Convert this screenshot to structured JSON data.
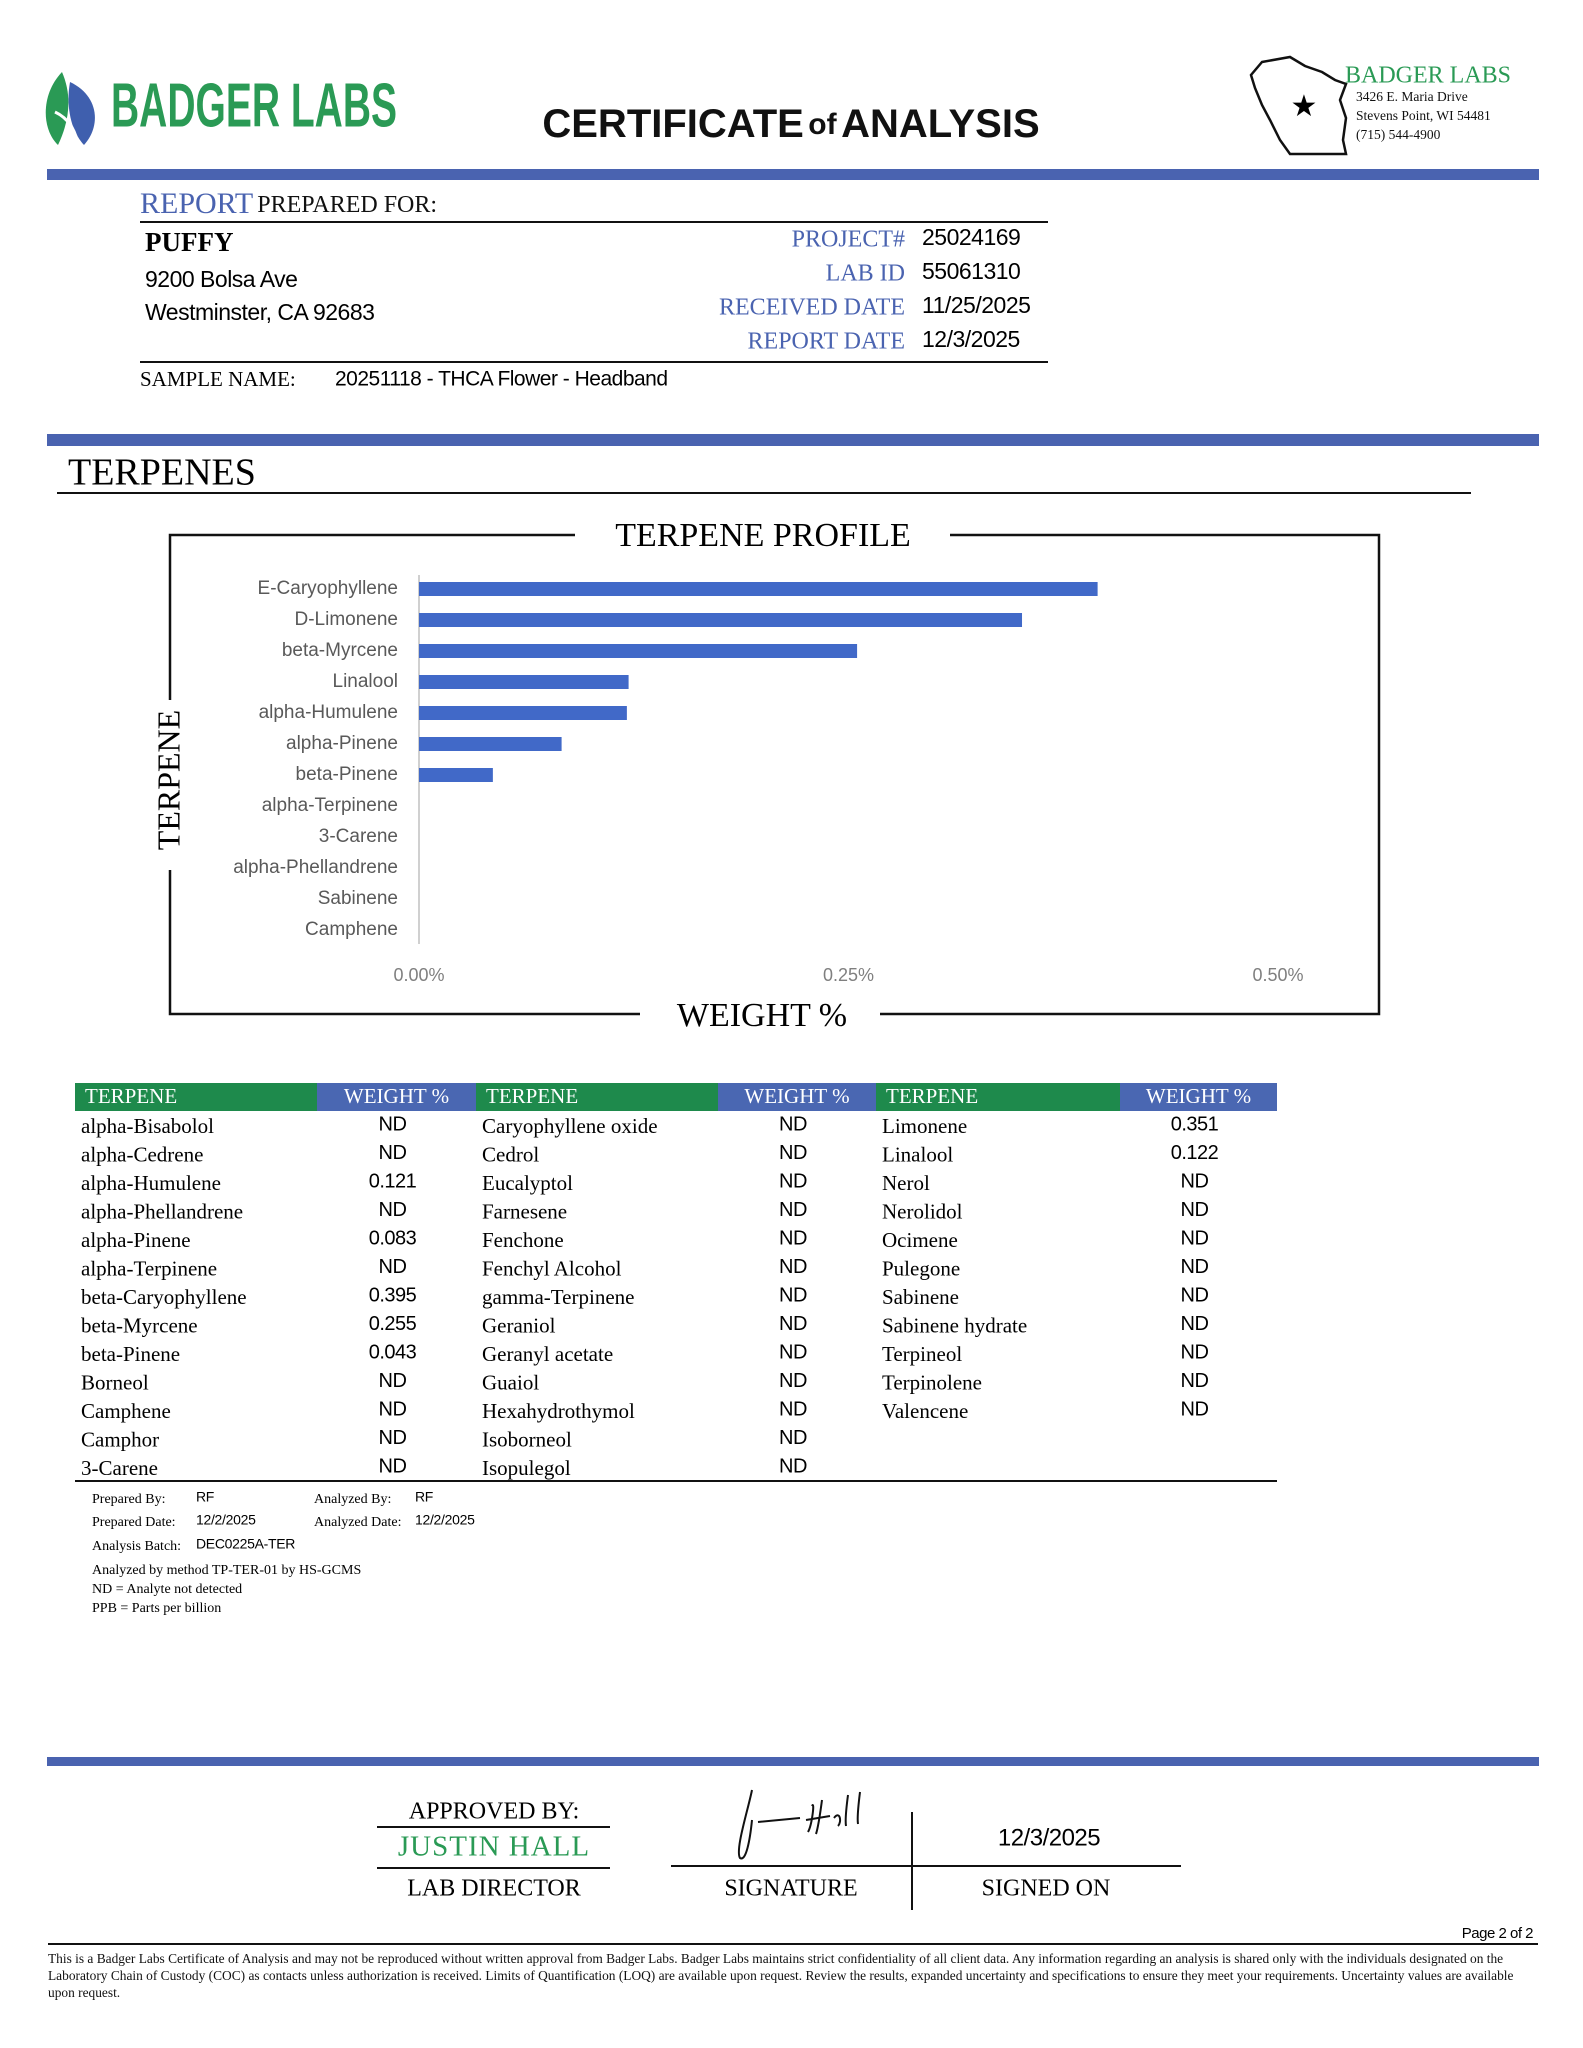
{
  "header": {
    "logo": "BADGER LABS",
    "title": [
      "CERTIFICATE",
      "of",
      "ANALYSIS"
    ],
    "lab_name": "BADGER LABS",
    "address": [
      "3426 E. Maria Drive",
      "Stevens Point, WI 54481",
      "(715) 544-4900"
    ]
  },
  "report": {
    "heading": [
      "REPORT",
      "PREPARED FOR:"
    ],
    "client": "PUFFY",
    "client_address": [
      "9200 Bolsa Ave",
      "Westminster, CA 92683"
    ],
    "fields": [
      {
        "label": "PROJECT#",
        "value": "25024169"
      },
      {
        "label": "LAB ID",
        "value": "55061310"
      },
      {
        "label": "RECEIVED DATE",
        "value": "11/25/2025"
      },
      {
        "label": "REPORT DATE",
        "value": "12/3/2025"
      }
    ],
    "sample_label": "SAMPLE NAME:",
    "sample_name": "20251118 - THCA Flower - Headband"
  },
  "section_title": "TERPENES",
  "chart_data": {
    "type": "bar",
    "horizontal": true,
    "title": "TERPENE PROFILE",
    "x_label": "WEIGHT %",
    "y_label": "TERPENE",
    "color": "#4169c8",
    "categories": [
      "E-Caryophyllene",
      "D-Limonene",
      "beta-Myrcene",
      "Linalool",
      "alpha-Humulene",
      "alpha-Pinene",
      "beta-Pinene",
      "alpha-Terpinene",
      "3-Carene",
      "alpha-Phellandrene",
      "Sabinene",
      "Camphene"
    ],
    "values": [
      0.395,
      0.351,
      0.255,
      0.122,
      0.121,
      0.083,
      0.043,
      0,
      0,
      0,
      0,
      0
    ],
    "xlim": [
      0,
      0.5
    ],
    "xticks": [
      {
        "value": 0,
        "label": "0.00%"
      },
      {
        "value": 0.25,
        "label": "0.25%"
      },
      {
        "value": 0.5,
        "label": "0.50%"
      }
    ]
  },
  "table": {
    "groups": [
      {
        "headers": [
          "TERPENE",
          "WEIGHT %"
        ],
        "rows": [
          [
            "alpha-Bisabolol",
            "ND"
          ],
          [
            "alpha-Cedrene",
            "ND"
          ],
          [
            "alpha-Humulene",
            0.121
          ],
          [
            "alpha-Phellandrene",
            "ND"
          ],
          [
            "alpha-Pinene",
            0.083
          ],
          [
            "alpha-Terpinene",
            "ND"
          ],
          [
            "beta-Caryophyllene",
            0.395
          ],
          [
            "beta-Myrcene",
            0.255
          ],
          [
            "beta-Pinene",
            0.043
          ],
          [
            "Borneol",
            "ND"
          ],
          [
            "Camphene",
            "ND"
          ],
          [
            "Camphor",
            "ND"
          ],
          [
            "3-Carene",
            "ND"
          ]
        ]
      },
      {
        "headers": [
          "TERPENE",
          "WEIGHT %"
        ],
        "rows": [
          [
            "Caryophyllene oxide",
            "ND"
          ],
          [
            "Cedrol",
            "ND"
          ],
          [
            "Eucalyptol",
            "ND"
          ],
          [
            "Farnesene",
            "ND"
          ],
          [
            "Fenchone",
            "ND"
          ],
          [
            "Fenchyl Alcohol",
            "ND"
          ],
          [
            "gamma-Terpinene",
            "ND"
          ],
          [
            "Geraniol",
            "ND"
          ],
          [
            "Geranyl acetate",
            "ND"
          ],
          [
            "Guaiol",
            "ND"
          ],
          [
            "Hexahydrothymol",
            "ND"
          ],
          [
            "Isoborneol",
            "ND"
          ],
          [
            "Isopulegol",
            "ND"
          ]
        ]
      },
      {
        "headers": [
          "TERPENE",
          "WEIGHT %"
        ],
        "rows": [
          [
            "Limonene",
            0.351
          ],
          [
            "Linalool",
            0.122
          ],
          [
            "Nerol",
            "ND"
          ],
          [
            "Nerolidol",
            "ND"
          ],
          [
            "Ocimene",
            "ND"
          ],
          [
            "Pulegone",
            "ND"
          ],
          [
            "Sabinene",
            "ND"
          ],
          [
            "Sabinene hydrate",
            "ND"
          ],
          [
            "Terpineol",
            "ND"
          ],
          [
            "Terpinolene",
            "ND"
          ],
          [
            "Valencene",
            "ND"
          ]
        ]
      }
    ]
  },
  "notes": {
    "prepared_by": {
      "label": "Prepared By:",
      "value": "RF"
    },
    "prepared_date": {
      "label": "Prepared Date:",
      "value": "12/2/2025"
    },
    "analyzed_by": {
      "label": "Analyzed By:",
      "value": "RF"
    },
    "analyzed_date": {
      "label": "Analyzed Date:",
      "value": "12/2/2025"
    },
    "batch": {
      "label": "Analysis Batch:",
      "value": "DEC0225A-TER"
    },
    "lines": [
      "Analyzed by method TP-TER-01 by HS-GCMS",
      "ND = Analyte not detected",
      "PPB = Parts per billion"
    ]
  },
  "approval": {
    "approved_by": "APPROVED BY:",
    "name": "JUSTIN HALL",
    "role": "LAB DIRECTOR",
    "signature_label": "SIGNATURE",
    "signed_date": "12/3/2025",
    "signed_on_label": "SIGNED ON"
  },
  "footer": {
    "page": "Page 2 of 2",
    "disclaimer": "This is a Badger Labs Certificate of Analysis and may not be reproduced without written approval from Badger Labs. Badger Labs maintains strict confidentiality of all client data. Any information regarding an analysis is shared only with the individuals designated on the Laboratory Chain of Custody (COC) as contacts unless authorization is received. Limits of Quantification (LOQ) are available upon request. Review the results, expanded uncertainty and specifications to ensure they meet your requirements. Uncertainty values are available upon request."
  }
}
